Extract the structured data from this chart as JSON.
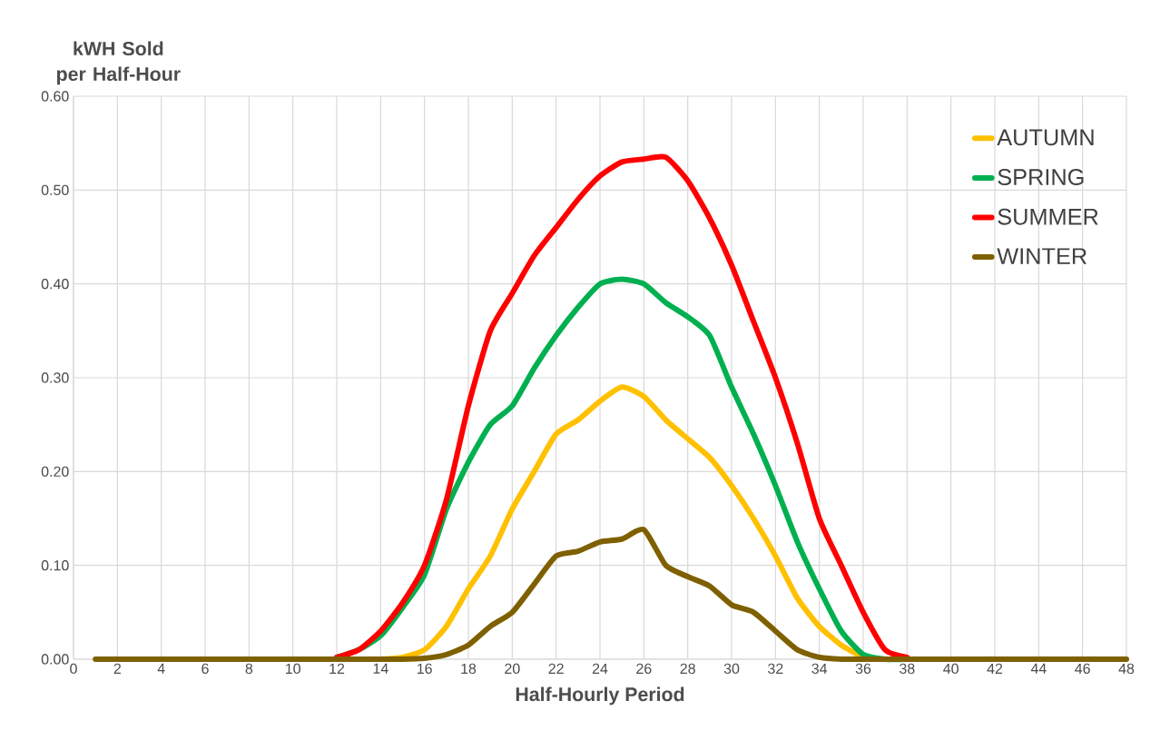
{
  "chart_data": {
    "type": "line",
    "xlabel": "Half-Hourly Period",
    "ylabel": "kWH Sold per Half-Hour",
    "x": [
      1,
      2,
      3,
      4,
      5,
      6,
      7,
      8,
      9,
      10,
      11,
      12,
      13,
      14,
      15,
      16,
      17,
      18,
      19,
      20,
      21,
      22,
      23,
      24,
      25,
      26,
      27,
      28,
      29,
      30,
      31,
      32,
      33,
      34,
      35,
      36,
      37,
      38,
      39,
      40,
      41,
      42,
      43,
      44,
      45,
      46,
      47,
      48
    ],
    "series": [
      {
        "name": "AUTUMN",
        "color": "#ffc000",
        "values": [
          null,
          null,
          null,
          null,
          null,
          null,
          null,
          null,
          null,
          null,
          null,
          null,
          null,
          0,
          0.002,
          0.01,
          0.035,
          0.075,
          0.11,
          0.16,
          0.2,
          0.24,
          0.255,
          0.275,
          0.29,
          0.28,
          0.255,
          0.235,
          0.215,
          0.185,
          0.15,
          0.11,
          0.065,
          0.035,
          0.015,
          0.002,
          null,
          null,
          null,
          null,
          null,
          null,
          null,
          null,
          null,
          null,
          null,
          null
        ]
      },
      {
        "name": "SPRING",
        "color": "#00b050",
        "values": [
          null,
          null,
          null,
          null,
          null,
          null,
          null,
          null,
          null,
          null,
          null,
          0.002,
          0.01,
          0.025,
          0.055,
          0.09,
          0.16,
          0.21,
          0.25,
          0.27,
          0.31,
          0.345,
          0.375,
          0.4,
          0.405,
          0.4,
          0.38,
          0.365,
          0.345,
          0.29,
          0.24,
          0.185,
          0.125,
          0.075,
          0.03,
          0.005,
          0,
          0,
          null,
          null,
          null,
          null,
          null,
          null,
          null,
          null,
          null,
          null
        ]
      },
      {
        "name": "SUMMER",
        "color": "#ff0000",
        "values": [
          null,
          null,
          null,
          null,
          null,
          null,
          null,
          null,
          null,
          null,
          null,
          0.002,
          0.01,
          0.03,
          0.06,
          0.1,
          0.17,
          0.27,
          0.35,
          0.39,
          0.43,
          0.46,
          0.49,
          0.515,
          0.53,
          0.533,
          0.535,
          0.51,
          0.47,
          0.42,
          0.36,
          0.3,
          0.23,
          0.15,
          0.1,
          0.05,
          0.01,
          0.002,
          null,
          null,
          null,
          null,
          null,
          null,
          null,
          null,
          null,
          null
        ]
      },
      {
        "name": "WINTER",
        "color": "#7f6000",
        "values": [
          0,
          0,
          0,
          0,
          0,
          0,
          0,
          0,
          0,
          0,
          0,
          0,
          0,
          0,
          0,
          0.001,
          0.005,
          0.015,
          0.035,
          0.05,
          0.08,
          0.11,
          0.115,
          0.125,
          0.128,
          0.138,
          0.1,
          0.088,
          0.078,
          0.058,
          0.05,
          0.03,
          0.01,
          0.002,
          0,
          0,
          0,
          0,
          0,
          0,
          0,
          0,
          0,
          0,
          0,
          0,
          0,
          0
        ]
      }
    ],
    "xlim": [
      0,
      48
    ],
    "xticks": [
      0,
      2,
      4,
      6,
      8,
      10,
      12,
      14,
      16,
      18,
      20,
      22,
      24,
      26,
      28,
      30,
      32,
      34,
      36,
      38,
      40,
      42,
      44,
      46,
      48
    ],
    "ylim": [
      0,
      0.6
    ],
    "yticks": [
      {
        "value": 0,
        "label": "0.00"
      },
      {
        "value": 0.1,
        "label": "0.10"
      },
      {
        "value": 0.2,
        "label": "0.20"
      },
      {
        "value": 0.3,
        "label": "0.30"
      },
      {
        "value": 0.4,
        "label": "0.40"
      },
      {
        "value": 0.5,
        "label": "0.50"
      },
      {
        "value": 0.6,
        "label": "0.60"
      }
    ],
    "grid": true,
    "legend": "top right",
    "marker": "none",
    "line_style": "solid"
  }
}
